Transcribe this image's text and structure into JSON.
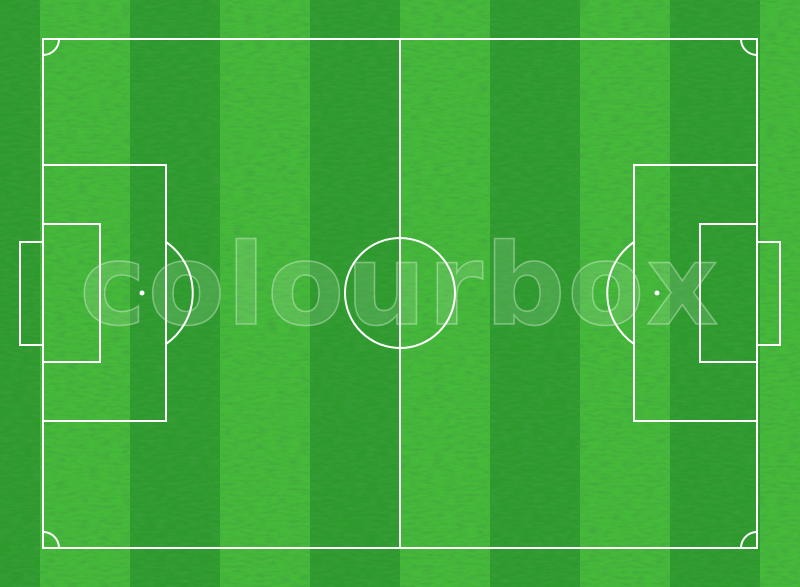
{
  "watermark": "colourbox"
}
